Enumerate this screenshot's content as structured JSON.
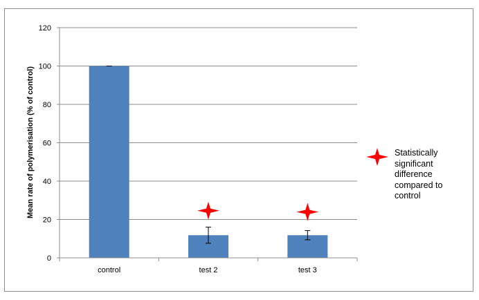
{
  "chart_data": {
    "type": "bar",
    "title": "",
    "xlabel": "",
    "ylabel": "Mean rate of polymerisation (% of control)",
    "categories": [
      "control",
      "test 2",
      "test 3"
    ],
    "values": [
      100,
      11.8,
      11.8
    ],
    "error_bars": [
      {
        "low": 100,
        "high": 100
      },
      {
        "low": 7.6,
        "high": 16.0
      },
      {
        "low": 9.4,
        "high": 14.2
      }
    ],
    "significance_markers": [
      {
        "category": "test 2",
        "y": 24.6
      },
      {
        "category": "test 3",
        "y": 23.9
      }
    ],
    "ylim": [
      0,
      120
    ],
    "yticks": [
      "0",
      "20",
      "40",
      "60",
      "80",
      "100",
      "120"
    ],
    "grid": true,
    "bar_color": "#4f81bd",
    "marker_color": "#ff0000",
    "legend": {
      "placement": "right",
      "icon": "red-four-point-star-icon",
      "label": "Statistically significant difference compared to control"
    }
  }
}
